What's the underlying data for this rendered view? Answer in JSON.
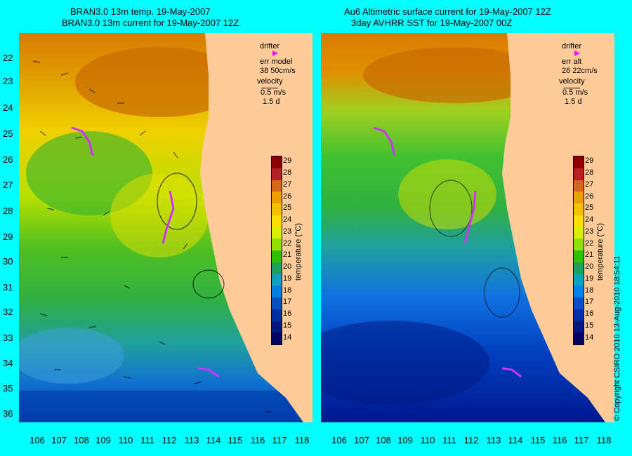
{
  "left_panel": {
    "title_line1": "BRAN3.0 13m temp. 19-May-2007",
    "title_line2": "BRAN3.0 13m current for 19-May-2007 12Z",
    "legend": {
      "drifter": "drifter",
      "err_line1": "err model",
      "err_line2": "38 50cm/s",
      "velocity": "velocity",
      "speed": "0.5 m/s",
      "duration": "1.5 d"
    }
  },
  "right_panel": {
    "title_line1": "Au6 Altimetric surface current for 19-May-2007 12Z",
    "title_line2": "3day AVHRR SST for 19-May-2007 00Z",
    "legend": {
      "drifter": "drifter",
      "err_line1": "err alt",
      "err_line2": "26 22cm/s",
      "velocity": "velocity",
      "speed": "0.5 m/s",
      "duration": "1.5 d"
    }
  },
  "axes": {
    "y_ticks": [
      "22",
      "23",
      "24",
      "25",
      "26",
      "27",
      "28",
      "29",
      "30",
      "31",
      "32",
      "33",
      "34",
      "35",
      "36"
    ],
    "x_ticks": [
      "106",
      "107",
      "108",
      "109",
      "110",
      "111",
      "112",
      "113",
      "114",
      "115",
      "116",
      "117",
      "118"
    ]
  },
  "colorbar": {
    "title": "temperature (°C)",
    "labels": [
      "29",
      "28",
      "27",
      "26",
      "25",
      "24",
      "23",
      "22",
      "21",
      "20",
      "19",
      "18",
      "17",
      "16",
      "15",
      "14"
    ],
    "colors": [
      "#8b0000",
      "#b22222",
      "#d2691e",
      "#e8a000",
      "#f5c000",
      "#ffe000",
      "#d8f000",
      "#90e000",
      "#30c000",
      "#20a060",
      "#10a0c0",
      "#0080e0",
      "#0050c0",
      "#0030a0",
      "#001880",
      "#000060"
    ]
  },
  "copyright": "© Copyright CSIRO 2010   13-Aug-2010 18:54:11",
  "colors": {
    "background": "#00ffff",
    "land": "#ffcc99"
  }
}
